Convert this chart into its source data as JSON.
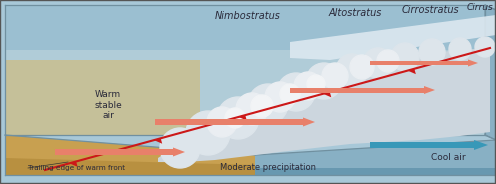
{
  "figsize": [
    4.96,
    1.84
  ],
  "dpi": 100,
  "labels": {
    "nimbostratus": "Nimbostratus",
    "altostratus": "Altostratus",
    "cirrostratus": "Cirrostratus",
    "cirrus": "Cirrus",
    "warm_stable_air": "Warm\nstable\nair",
    "trailing_edge": "Trailing edge of warm front",
    "moderate_precip": "Moderate precipitation",
    "cool_air": "Cool air"
  },
  "colors": {
    "sky_blue_top": "#9dc5d8",
    "sky_blue_bot": "#c2dce8",
    "sky_warm_left": "#d4bc80",
    "ground_sand": "#c8a050",
    "ground_sand_edge": "#b08840",
    "ground_water": "#90b8c8",
    "ground_water_edge": "#6090a8",
    "cloud_base": "#dde4ea",
    "cloud_bright": "#f0f3f5",
    "thin_cloud": "#dde8ee",
    "warm_arrow": "#e8806a",
    "cool_arrow": "#3898b8",
    "front_line": "#cc1818",
    "front_tri": "#cc1818",
    "box_edge": "#7090a0",
    "text_color": "#2a2a3a"
  }
}
